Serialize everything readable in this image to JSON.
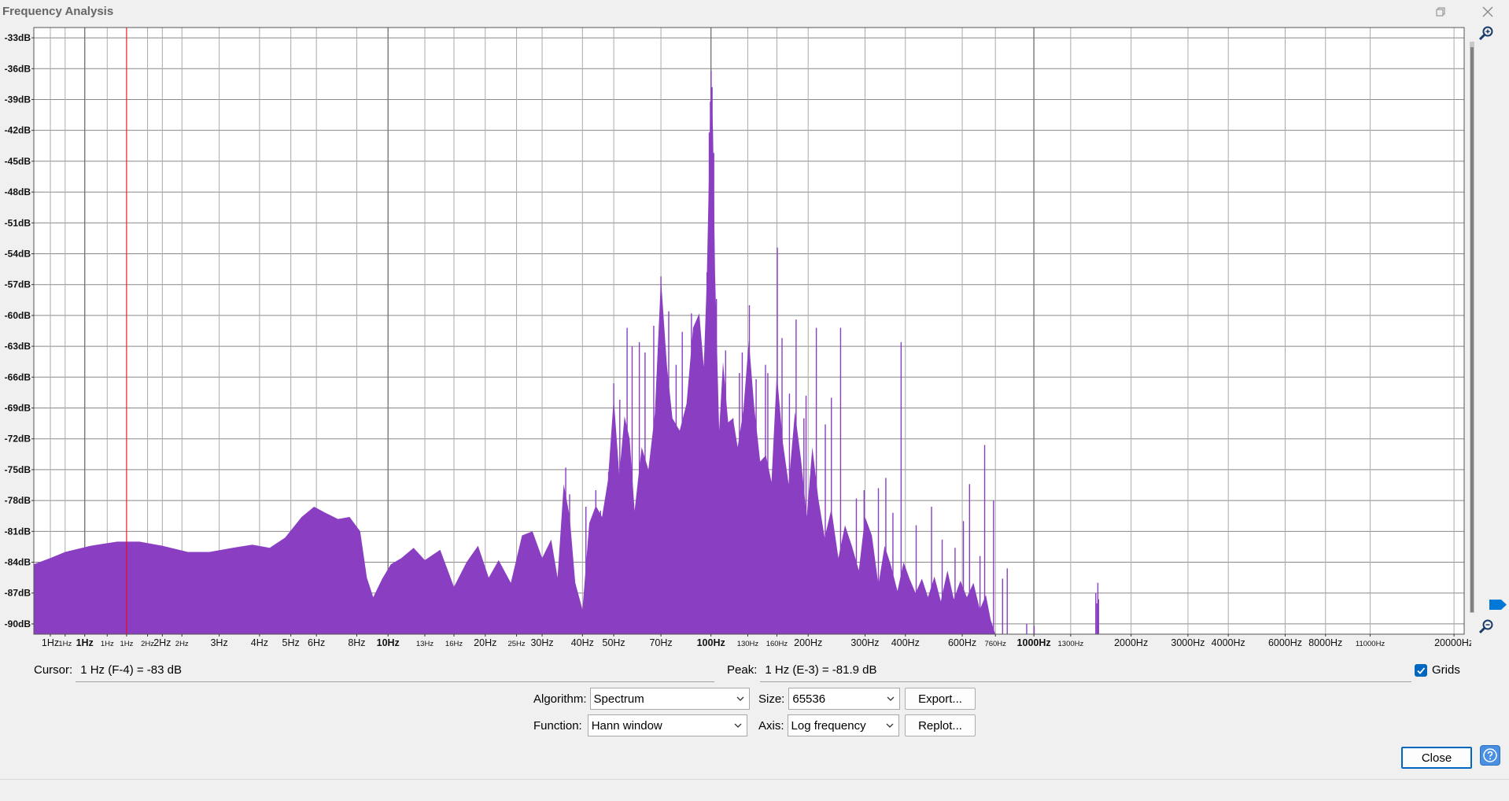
{
  "window": {
    "title": "Frequency Analysis",
    "restore_icon": "restore-icon",
    "close_icon": "close-icon"
  },
  "chart_data": {
    "type": "area",
    "x_scale": "log",
    "xlim": [
      0.8,
      21500
    ],
    "ylim": [
      -91,
      -32
    ],
    "grid": true,
    "fill_color": "#8a3fc2",
    "cursor_line_color": "#ff0000",
    "cursor_x": 1.55,
    "y_ticks": [
      {
        "v": -33,
        "label": "-33dB"
      },
      {
        "v": -36,
        "label": "-36dB"
      },
      {
        "v": -39,
        "label": "-39dB"
      },
      {
        "v": -42,
        "label": "-42dB"
      },
      {
        "v": -45,
        "label": "-45dB"
      },
      {
        "v": -48,
        "label": "-48dB"
      },
      {
        "v": -51,
        "label": "-51dB"
      },
      {
        "v": -54,
        "label": "-54dB"
      },
      {
        "v": -57,
        "label": "-57dB"
      },
      {
        "v": -60,
        "label": "-60dB"
      },
      {
        "v": -63,
        "label": "-63dB"
      },
      {
        "v": -66,
        "label": "-66dB"
      },
      {
        "v": -69,
        "label": "-69dB"
      },
      {
        "v": -72,
        "label": "-72dB"
      },
      {
        "v": -75,
        "label": "-75dB"
      },
      {
        "v": -78,
        "label": "-78dB"
      },
      {
        "v": -81,
        "label": "-81dB"
      },
      {
        "v": -84,
        "label": "-84dB"
      },
      {
        "v": -87,
        "label": "-87dB"
      },
      {
        "v": -90,
        "label": "-90dB"
      }
    ],
    "x_ticks": [
      {
        "v": 0.9,
        "label": "1Hz",
        "size": "normal"
      },
      {
        "v": 1.0,
        "label": "1Hz",
        "size": "small"
      },
      {
        "v": 1.15,
        "label": "1Hz",
        "size": "bold"
      },
      {
        "v": 1.35,
        "label": "1Hz",
        "size": "small"
      },
      {
        "v": 1.55,
        "label": "1Hz",
        "size": "small"
      },
      {
        "v": 1.8,
        "label": "2Hz",
        "size": "small"
      },
      {
        "v": 2.0,
        "label": "2Hz",
        "size": "normal"
      },
      {
        "v": 2.3,
        "label": "2Hz",
        "size": "small"
      },
      {
        "v": 3.0,
        "label": "3Hz",
        "size": "normal"
      },
      {
        "v": 4.0,
        "label": "4Hz",
        "size": "normal"
      },
      {
        "v": 5.0,
        "label": "5Hz",
        "size": "normal"
      },
      {
        "v": 6.0,
        "label": "6Hz",
        "size": "normal"
      },
      {
        "v": 8.0,
        "label": "8Hz",
        "size": "normal"
      },
      {
        "v": 10,
        "label": "10Hz",
        "size": "bold"
      },
      {
        "v": 13,
        "label": "13Hz",
        "size": "small"
      },
      {
        "v": 16,
        "label": "16Hz",
        "size": "small"
      },
      {
        "v": 20,
        "label": "20Hz",
        "size": "normal"
      },
      {
        "v": 25,
        "label": "25Hz",
        "size": "small"
      },
      {
        "v": 30,
        "label": "30Hz",
        "size": "normal"
      },
      {
        "v": 40,
        "label": "40Hz",
        "size": "normal"
      },
      {
        "v": 50,
        "label": "50Hz",
        "size": "normal"
      },
      {
        "v": 70,
        "label": "70Hz",
        "size": "normal"
      },
      {
        "v": 100,
        "label": "100Hz",
        "size": "bold"
      },
      {
        "v": 130,
        "label": "130Hz",
        "size": "small"
      },
      {
        "v": 160,
        "label": "160Hz",
        "size": "small"
      },
      {
        "v": 200,
        "label": "200Hz",
        "size": "normal"
      },
      {
        "v": 300,
        "label": "300Hz",
        "size": "normal"
      },
      {
        "v": 400,
        "label": "400Hz",
        "size": "normal"
      },
      {
        "v": 600,
        "label": "600Hz",
        "size": "normal"
      },
      {
        "v": 760,
        "label": "760Hz",
        "size": "small"
      },
      {
        "v": 1000,
        "label": "1000Hz",
        "size": "bold"
      },
      {
        "v": 1300,
        "label": "1300Hz",
        "size": "small"
      },
      {
        "v": 2000,
        "label": "2000Hz",
        "size": "normal"
      },
      {
        "v": 3000,
        "label": "3000Hz",
        "size": "normal"
      },
      {
        "v": 4000,
        "label": "4000Hz",
        "size": "normal"
      },
      {
        "v": 6000,
        "label": "6000Hz",
        "size": "normal"
      },
      {
        "v": 8000,
        "label": "8000Hz",
        "size": "normal"
      },
      {
        "v": 11000,
        "label": "11000Hz",
        "size": "small"
      },
      {
        "v": 20000,
        "label": "20000Hz",
        "size": "normal"
      }
    ],
    "envelope": [
      [
        0.8,
        -84.2
      ],
      [
        0.9,
        -83.6
      ],
      [
        1.0,
        -83.0
      ],
      [
        1.2,
        -82.4
      ],
      [
        1.45,
        -82.0
      ],
      [
        1.7,
        -82.0
      ],
      [
        2.0,
        -82.4
      ],
      [
        2.4,
        -83.0
      ],
      [
        2.8,
        -83.0
      ],
      [
        3.3,
        -82.6
      ],
      [
        3.8,
        -82.3
      ],
      [
        4.3,
        -82.6
      ],
      [
        4.8,
        -81.6
      ],
      [
        5.4,
        -79.6
      ],
      [
        5.9,
        -78.6
      ],
      [
        6.4,
        -79.2
      ],
      [
        7.0,
        -79.8
      ],
      [
        7.6,
        -79.6
      ],
      [
        8.2,
        -81.0
      ],
      [
        8.6,
        -85.5
      ],
      [
        9.0,
        -87.4
      ],
      [
        9.6,
        -85.6
      ],
      [
        10.2,
        -84.2
      ],
      [
        11.0,
        -83.6
      ],
      [
        12.0,
        -82.6
      ],
      [
        13.0,
        -83.8
      ],
      [
        14.5,
        -82.8
      ],
      [
        16.0,
        -86.4
      ],
      [
        17.5,
        -84.0
      ],
      [
        19.0,
        -82.4
      ],
      [
        20.5,
        -85.5
      ],
      [
        22.0,
        -83.8
      ],
      [
        24.0,
        -86.0
      ],
      [
        26.0,
        -81.4
      ],
      [
        28.0,
        -81.0
      ],
      [
        30.0,
        -83.6
      ],
      [
        32.0,
        -81.8
      ],
      [
        33.5,
        -85.5
      ],
      [
        35.0,
        -76.4
      ],
      [
        36.5,
        -79.5
      ],
      [
        38.0,
        -86.0
      ],
      [
        40.0,
        -88.6
      ],
      [
        42.0,
        -80.2
      ],
      [
        44.0,
        -78.5
      ],
      [
        46.0,
        -79.6
      ],
      [
        48.0,
        -76.0
      ],
      [
        50.0,
        -68.0
      ],
      [
        52.0,
        -75.5
      ],
      [
        54.0,
        -69.8
      ],
      [
        56.0,
        -72.0
      ],
      [
        58.0,
        -79.0
      ],
      [
        61.0,
        -72.8
      ],
      [
        64.0,
        -75.0
      ],
      [
        67.0,
        -69.6
      ],
      [
        70.0,
        -56.4
      ],
      [
        73.0,
        -64.8
      ],
      [
        76.0,
        -70.0
      ],
      [
        80.0,
        -71.2
      ],
      [
        84.0,
        -68.6
      ],
      [
        88.0,
        -61.2
      ],
      [
        92.0,
        -59.8
      ],
      [
        95.0,
        -65.0
      ],
      [
        97.0,
        -57.0
      ],
      [
        99.0,
        -43.4
      ],
      [
        100.0,
        -36.4
      ],
      [
        101.5,
        -42.2
      ],
      [
        103.0,
        -56.0
      ],
      [
        106.0,
        -71.2
      ],
      [
        109.0,
        -64.5
      ],
      [
        113.0,
        -70.4
      ],
      [
        117.0,
        -70.0
      ],
      [
        121.0,
        -72.8
      ],
      [
        126.0,
        -69.2
      ],
      [
        131.0,
        -62.4
      ],
      [
        136.0,
        -68.8
      ],
      [
        142.0,
        -74.2
      ],
      [
        148.0,
        -73.6
      ],
      [
        154.0,
        -76.2
      ],
      [
        160.0,
        -65.6
      ],
      [
        167.0,
        -72.4
      ],
      [
        174.0,
        -76.4
      ],
      [
        182.0,
        -69.4
      ],
      [
        190.0,
        -74.0
      ],
      [
        198.0,
        -79.6
      ],
      [
        206.0,
        -72.8
      ],
      [
        215.0,
        -77.8
      ],
      [
        225.0,
        -81.6
      ],
      [
        236.0,
        -78.8
      ],
      [
        248.0,
        -83.6
      ],
      [
        260.0,
        -80.4
      ],
      [
        273.0,
        -82.4
      ],
      [
        287.0,
        -84.8
      ],
      [
        300.0,
        -79.6
      ],
      [
        315.0,
        -81.4
      ],
      [
        330.0,
        -86.2
      ],
      [
        345.0,
        -82.4
      ],
      [
        360.0,
        -84.2
      ],
      [
        378.0,
        -86.8
      ],
      [
        395.0,
        -84.0
      ],
      [
        412.0,
        -85.6
      ],
      [
        430.0,
        -87.0
      ],
      [
        450.0,
        -85.6
      ],
      [
        470.0,
        -87.4
      ],
      [
        492.0,
        -85.4
      ],
      [
        515.0,
        -87.8
      ],
      [
        540.0,
        -84.8
      ],
      [
        565.0,
        -87.6
      ],
      [
        592.0,
        -85.8
      ],
      [
        620.0,
        -87.4
      ],
      [
        650.0,
        -86.0
      ],
      [
        680.0,
        -88.6
      ],
      [
        710.0,
        -87.2
      ],
      [
        735.0,
        -89.6
      ],
      [
        760.0,
        -91.0
      ]
    ],
    "spikes": [
      [
        35.5,
        -74.8
      ],
      [
        36.5,
        -77.4
      ],
      [
        41.0,
        -78.6
      ],
      [
        44.0,
        -77.0
      ],
      [
        45.5,
        -79.0
      ],
      [
        48.2,
        -75.2
      ],
      [
        50.0,
        -66.6
      ],
      [
        52.2,
        -68.2
      ],
      [
        55.0,
        -61.2
      ],
      [
        57.0,
        -63.0
      ],
      [
        60.0,
        -62.6
      ],
      [
        62.5,
        -63.6
      ],
      [
        66.5,
        -61.0
      ],
      [
        70.0,
        -56.2
      ],
      [
        74.0,
        -59.6
      ],
      [
        78.0,
        -64.8
      ],
      [
        81.5,
        -61.6
      ],
      [
        85.0,
        -69.2
      ],
      [
        87.0,
        -59.8
      ],
      [
        90.0,
        -61.8
      ],
      [
        93.0,
        -62.4
      ],
      [
        97.2,
        -55.8
      ],
      [
        98.8,
        -42.2
      ],
      [
        99.6,
        -39.2
      ],
      [
        100.1,
        -36.2
      ],
      [
        100.8,
        -37.8
      ],
      [
        102.0,
        -44.2
      ],
      [
        104.0,
        -58.4
      ],
      [
        111.0,
        -63.4
      ],
      [
        117.0,
        -70.0
      ],
      [
        122.5,
        -65.6
      ],
      [
        125.0,
        -63.6
      ],
      [
        131.5,
        -59.0
      ],
      [
        138.0,
        -66.2
      ],
      [
        147.5,
        -64.8
      ],
      [
        150.0,
        -65.6
      ],
      [
        160.5,
        -53.4
      ],
      [
        166.0,
        -62.2
      ],
      [
        175.0,
        -67.6
      ],
      [
        183.5,
        -60.4
      ],
      [
        194.0,
        -70.0
      ],
      [
        197.0,
        -67.8
      ],
      [
        212.0,
        -61.2
      ],
      [
        226.0,
        -70.6
      ],
      [
        236.0,
        -68.0
      ],
      [
        252.0,
        -61.2
      ],
      [
        282.0,
        -77.8
      ],
      [
        298.0,
        -77.0
      ],
      [
        330.0,
        -76.8
      ],
      [
        348.0,
        -75.8
      ],
      [
        366.0,
        -79.2
      ],
      [
        388.0,
        -62.6
      ],
      [
        432.0,
        -80.4
      ],
      [
        482.0,
        -78.6
      ],
      [
        520.0,
        -81.8
      ],
      [
        570.0,
        -82.6
      ],
      [
        605.0,
        -80.0
      ],
      [
        632.0,
        -76.4
      ],
      [
        681.0,
        -83.4
      ],
      [
        704.0,
        -72.6
      ],
      [
        750.0,
        -78.0
      ],
      [
        800.0,
        -85.6
      ],
      [
        827.0,
        -84.6
      ],
      [
        950.0,
        -90.0
      ],
      [
        1002.0,
        -90.2
      ],
      [
        1555.0,
        -87.0
      ],
      [
        1568.0,
        -88.0
      ],
      [
        1578.0,
        -86.0
      ],
      [
        1586.0,
        -87.6
      ]
    ]
  },
  "controls": {
    "cursor_label": "Cursor:",
    "cursor_value": "1 Hz (F-4) = -83 dB",
    "peak_label": "Peak:",
    "peak_value": "1 Hz (E-3) = -81.9 dB",
    "grids_label": "Grids",
    "grids_checked": true,
    "algorithm_label": "Algorithm:",
    "algorithm_value": "Spectrum",
    "size_label": "Size:",
    "size_value": "65536",
    "function_label": "Function:",
    "function_value": "Hann window",
    "axis_label": "Axis:",
    "axis_value": "Log frequency",
    "export_label": "Export...",
    "replot_label": "Replot...",
    "close_label": "Close",
    "help_icon": "help-icon",
    "zoom_in_icon": "zoom-in-icon",
    "zoom_out_icon": "zoom-out-icon"
  }
}
